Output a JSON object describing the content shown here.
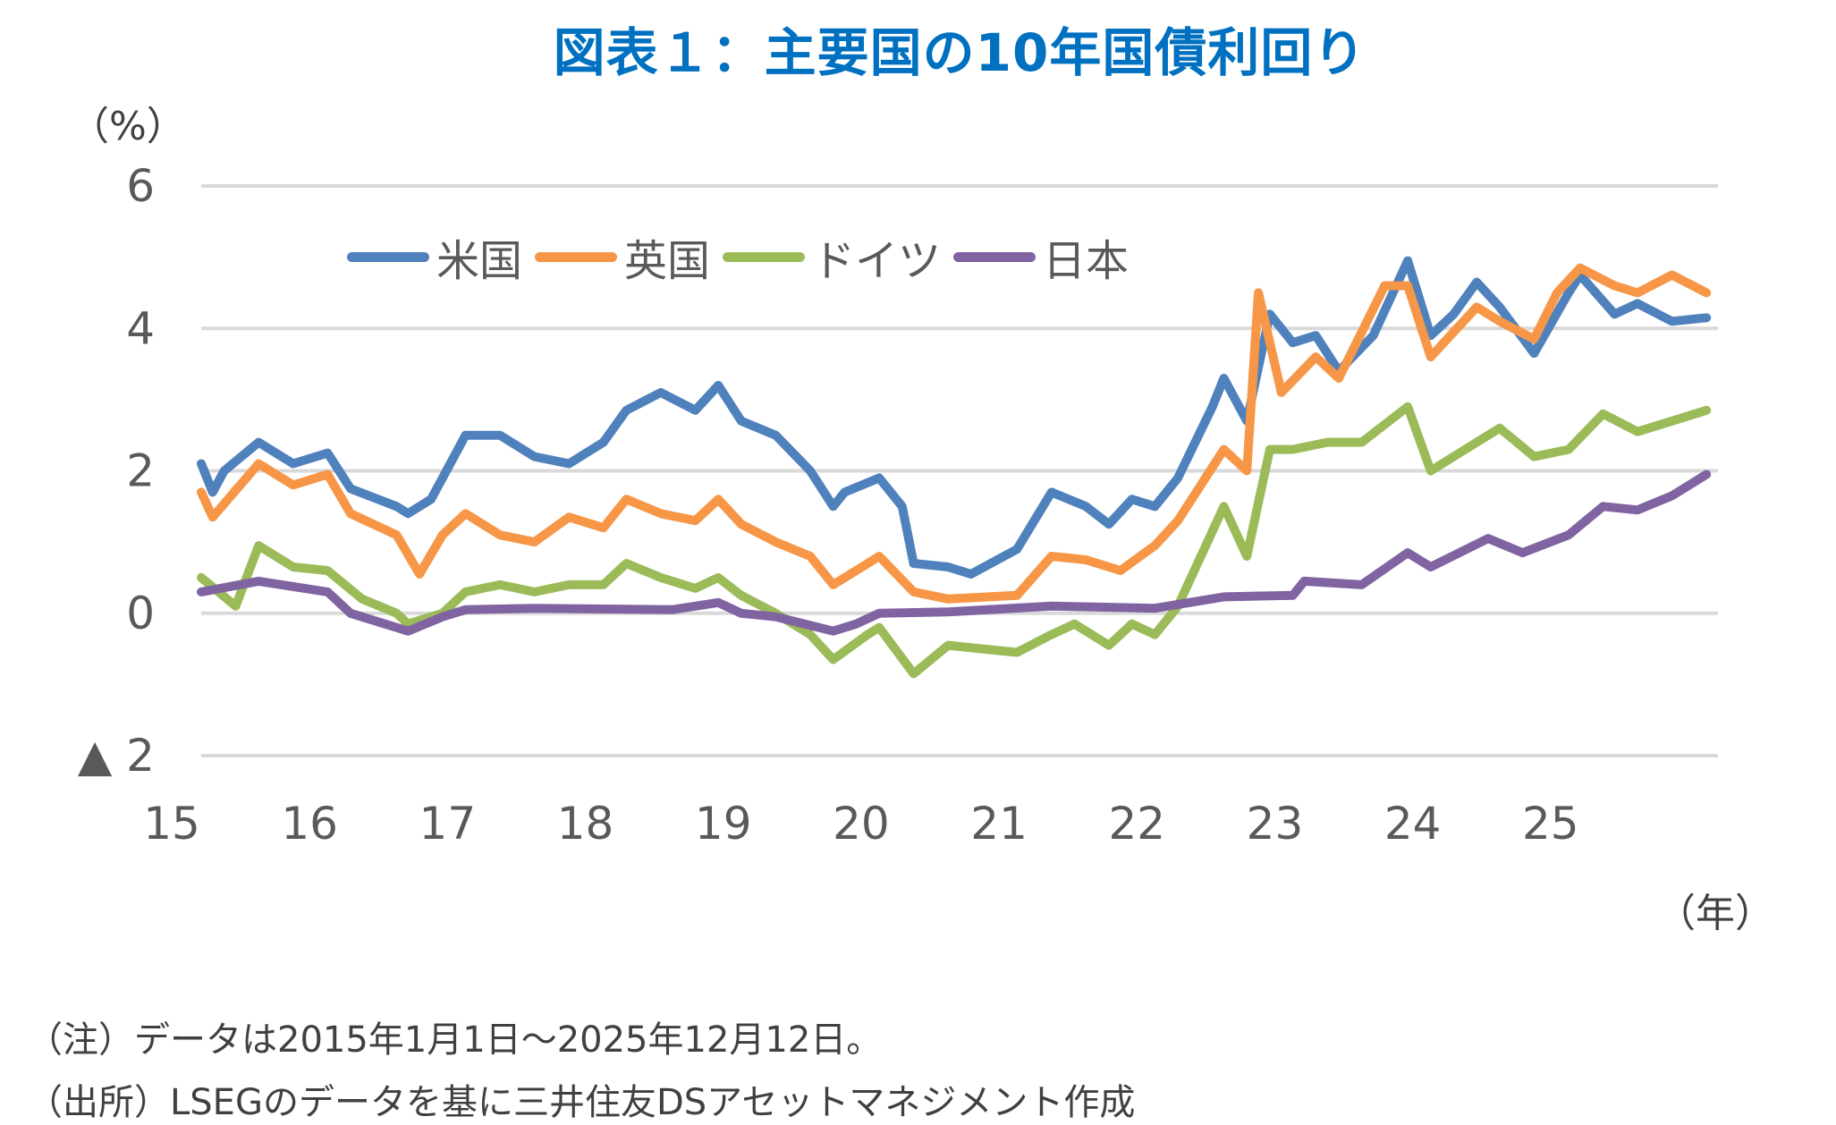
{
  "title": "図表１：主要国の10年国債利回り",
  "y_unit": "（%）",
  "x_unit": "（年）",
  "notes": [
    "（注）データは2015年1月1日～2025年12月12日。",
    "（出所）LSEGのデータを基に三井住友DSアセットマネジメント作成"
  ],
  "chart_data": {
    "type": "line",
    "title": "図表１：主要国の10年国債利回り",
    "ylabel": "（%）",
    "xlabel": "（年）",
    "ylim": [
      -2,
      6
    ],
    "y_ticks": [
      -2,
      0,
      2,
      4,
      6
    ],
    "y_tick_labels": [
      "▲ 2",
      "0",
      "2",
      "4",
      "6"
    ],
    "x_ticks": [
      2015,
      2016,
      2017,
      2018,
      2019,
      2020,
      2021,
      2022,
      2023,
      2024,
      2025
    ],
    "x_tick_labels": [
      "15",
      "16",
      "17",
      "18",
      "19",
      "20",
      "21",
      "22",
      "23",
      "24",
      "25"
    ],
    "xlim": [
      "2015-01",
      "2025-12"
    ],
    "grid": "horizontal",
    "legend_position": "top-left",
    "series": [
      {
        "name": "米国",
        "color": "#4F81BD",
        "x": [
          "2015-01",
          "2015-02",
          "2015-03",
          "2015-06",
          "2015-09",
          "2015-12",
          "2016-02",
          "2016-06",
          "2016-07",
          "2016-09",
          "2016-11",
          "2016-12",
          "2017-03",
          "2017-06",
          "2017-09",
          "2017-12",
          "2018-02",
          "2018-05",
          "2018-08",
          "2018-10",
          "2018-12",
          "2019-03",
          "2019-06",
          "2019-08",
          "2019-09",
          "2019-12",
          "2020-02",
          "2020-03",
          "2020-06",
          "2020-08",
          "2020-12",
          "2021-03",
          "2021-06",
          "2021-08",
          "2021-10",
          "2021-12",
          "2022-02",
          "2022-05",
          "2022-06",
          "2022-08",
          "2022-10",
          "2022-12",
          "2023-02",
          "2023-04",
          "2023-07",
          "2023-10",
          "2023-12",
          "2024-02",
          "2024-04",
          "2024-06",
          "2024-09",
          "2024-12",
          "2025-01",
          "2025-04",
          "2025-06",
          "2025-09",
          "2025-12"
        ],
        "y": [
          2.1,
          1.7,
          2.0,
          2.4,
          2.1,
          2.25,
          1.75,
          1.5,
          1.4,
          1.6,
          2.2,
          2.5,
          2.5,
          2.2,
          2.1,
          2.4,
          2.85,
          3.1,
          2.85,
          3.2,
          2.7,
          2.5,
          2.0,
          1.5,
          1.7,
          1.9,
          1.5,
          0.7,
          0.65,
          0.55,
          0.9,
          1.7,
          1.5,
          1.25,
          1.6,
          1.5,
          1.9,
          2.9,
          3.3,
          2.7,
          4.2,
          3.8,
          3.9,
          3.4,
          3.9,
          4.95,
          3.9,
          4.2,
          4.65,
          4.3,
          3.65,
          4.5,
          4.75,
          4.2,
          4.35,
          4.1,
          4.15
        ]
      },
      {
        "name": "英国",
        "color": "#F79646",
        "x": [
          "2015-01",
          "2015-02",
          "2015-06",
          "2015-09",
          "2015-12",
          "2016-02",
          "2016-06",
          "2016-08",
          "2016-10",
          "2016-12",
          "2017-03",
          "2017-06",
          "2017-09",
          "2017-12",
          "2018-02",
          "2018-05",
          "2018-08",
          "2018-10",
          "2018-12",
          "2019-03",
          "2019-06",
          "2019-08",
          "2019-10",
          "2019-12",
          "2020-03",
          "2020-06",
          "2020-12",
          "2021-03",
          "2021-06",
          "2021-09",
          "2021-12",
          "2022-02",
          "2022-06",
          "2022-08",
          "2022-09",
          "2022-11",
          "2023-02",
          "2023-04",
          "2023-08",
          "2023-10",
          "2023-12",
          "2024-04",
          "2024-06",
          "2024-09",
          "2024-11",
          "2025-01",
          "2025-04",
          "2025-06",
          "2025-09",
          "2025-12"
        ],
        "y": [
          1.7,
          1.35,
          2.1,
          1.8,
          1.95,
          1.4,
          1.1,
          0.55,
          1.1,
          1.4,
          1.1,
          1.0,
          1.35,
          1.2,
          1.6,
          1.4,
          1.3,
          1.6,
          1.25,
          1.0,
          0.8,
          0.4,
          0.6,
          0.8,
          0.3,
          0.2,
          0.25,
          0.8,
          0.75,
          0.6,
          0.95,
          1.3,
          2.3,
          2.0,
          4.5,
          3.1,
          3.6,
          3.3,
          4.6,
          4.6,
          3.6,
          4.3,
          4.1,
          3.85,
          4.5,
          4.85,
          4.6,
          4.5,
          4.75,
          4.5
        ]
      },
      {
        "name": "ドイツ",
        "color": "#9BBB59",
        "x": [
          "2015-01",
          "2015-04",
          "2015-06",
          "2015-09",
          "2015-12",
          "2016-03",
          "2016-06",
          "2016-07",
          "2016-10",
          "2016-12",
          "2017-03",
          "2017-06",
          "2017-09",
          "2017-12",
          "2018-02",
          "2018-05",
          "2018-08",
          "2018-10",
          "2018-12",
          "2019-03",
          "2019-06",
          "2019-08",
          "2019-11",
          "2019-12",
          "2020-03",
          "2020-06",
          "2020-09",
          "2020-12",
          "2021-03",
          "2021-05",
          "2021-08",
          "2021-10",
          "2021-12",
          "2022-02",
          "2022-06",
          "2022-08",
          "2022-10",
          "2022-12",
          "2023-03",
          "2023-06",
          "2023-10",
          "2023-12",
          "2024-03",
          "2024-06",
          "2024-09",
          "2024-12",
          "2025-03",
          "2025-06",
          "2025-09",
          "2025-12"
        ],
        "y": [
          0.5,
          0.1,
          0.95,
          0.65,
          0.6,
          0.2,
          0.0,
          -0.15,
          0.0,
          0.3,
          0.4,
          0.3,
          0.4,
          0.4,
          0.7,
          0.5,
          0.35,
          0.5,
          0.25,
          0.0,
          -0.3,
          -0.65,
          -0.3,
          -0.2,
          -0.85,
          -0.45,
          -0.5,
          -0.55,
          -0.3,
          -0.15,
          -0.45,
          -0.15,
          -0.3,
          0.1,
          1.5,
          0.8,
          2.3,
          2.3,
          2.4,
          2.4,
          2.9,
          2.0,
          2.3,
          2.6,
          2.2,
          2.3,
          2.8,
          2.55,
          2.7,
          2.85
        ]
      },
      {
        "name": "日本",
        "color": "#8064A2",
        "x": [
          "2015-01",
          "2015-06",
          "2015-12",
          "2016-02",
          "2016-07",
          "2016-10",
          "2016-12",
          "2017-06",
          "2018-06",
          "2018-10",
          "2018-12",
          "2019-03",
          "2019-08",
          "2019-10",
          "2019-12",
          "2020-06",
          "2021-03",
          "2021-12",
          "2022-06",
          "2022-12",
          "2023-01",
          "2023-06",
          "2023-10",
          "2023-12",
          "2024-05",
          "2024-08",
          "2024-12",
          "2025-03",
          "2025-06",
          "2025-09",
          "2025-12"
        ],
        "y": [
          0.3,
          0.45,
          0.3,
          0.0,
          -0.25,
          -0.05,
          0.05,
          0.07,
          0.05,
          0.15,
          0.0,
          -0.05,
          -0.25,
          -0.15,
          0.0,
          0.02,
          0.1,
          0.07,
          0.23,
          0.25,
          0.45,
          0.4,
          0.85,
          0.65,
          1.05,
          0.85,
          1.1,
          1.5,
          1.45,
          1.65,
          1.95
        ]
      }
    ]
  }
}
